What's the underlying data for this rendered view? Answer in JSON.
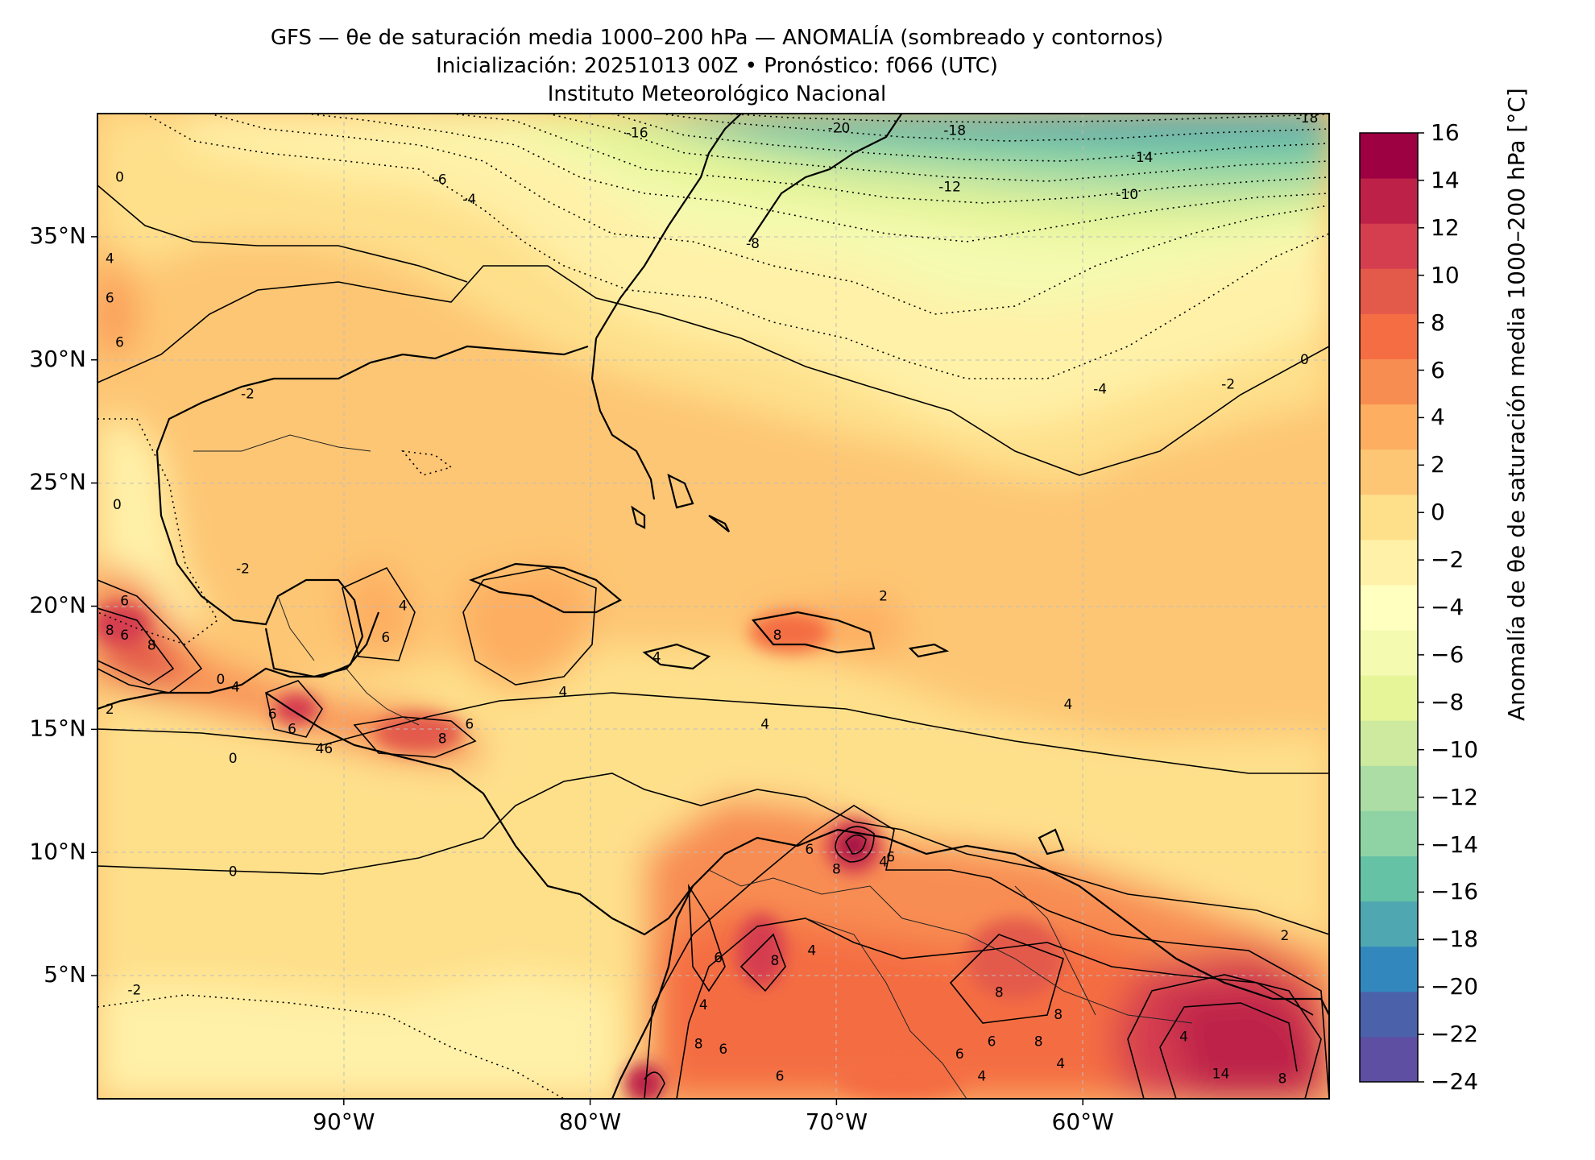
{
  "title": {
    "line1": "GFS — θe de saturación media 1000–200 hPa — ANOMALÍA (sombreado y contornos)",
    "line2": "Inicialización: 20251013 00Z   •   Pronóstico: f066 (UTC)",
    "line3": "Instituto Meteorológico Nacional"
  },
  "map": {
    "lon_range": [
      -100,
      -50
    ],
    "lat_range": [
      0,
      40
    ],
    "lat_ticks": [
      {
        "value": 35,
        "label": "35°N"
      },
      {
        "value": 30,
        "label": "30°N"
      },
      {
        "value": 25,
        "label": "25°N"
      },
      {
        "value": 20,
        "label": "20°N"
      },
      {
        "value": 15,
        "label": "15°N"
      },
      {
        "value": 10,
        "label": "10°N"
      },
      {
        "value": 5,
        "label": "5°N"
      }
    ],
    "lon_ticks": [
      {
        "value": -90,
        "label": "90°W"
      },
      {
        "value": -80,
        "label": "80°W"
      },
      {
        "value": -70,
        "label": "70°W"
      },
      {
        "value": -60,
        "label": "60°W"
      }
    ],
    "contour_labels": [
      {
        "text": "-16",
        "lon": -78.1,
        "lat": 39.2
      },
      {
        "text": "-20",
        "lon": -69.9,
        "lat": 39.4
      },
      {
        "text": "-18",
        "lon": -65.2,
        "lat": 39.3
      },
      {
        "text": "-18",
        "lon": -50.9,
        "lat": 39.8
      },
      {
        "text": "-14",
        "lon": -57.6,
        "lat": 38.2
      },
      {
        "text": "-12",
        "lon": -65.4,
        "lat": 37.0
      },
      {
        "text": "-10",
        "lon": -58.2,
        "lat": 36.7
      },
      {
        "text": "-8",
        "lon": -73.4,
        "lat": 34.7
      },
      {
        "text": "-6",
        "lon": -86.1,
        "lat": 37.3
      },
      {
        "text": "-4",
        "lon": -84.9,
        "lat": 36.5
      },
      {
        "text": "-4",
        "lon": -59.3,
        "lat": 28.8
      },
      {
        "text": "-2",
        "lon": -54.1,
        "lat": 29.0
      },
      {
        "text": "0",
        "lon": -51.0,
        "lat": 30.0
      },
      {
        "text": "0",
        "lon": -99.1,
        "lat": 37.4
      },
      {
        "text": "4",
        "lon": -99.5,
        "lat": 34.1
      },
      {
        "text": "6",
        "lon": -99.5,
        "lat": 32.5
      },
      {
        "text": "6",
        "lon": -99.1,
        "lat": 30.7
      },
      {
        "text": "-2",
        "lon": -93.9,
        "lat": 28.6
      },
      {
        "text": "-2",
        "lon": -94.1,
        "lat": 21.5
      },
      {
        "text": "0",
        "lon": -99.2,
        "lat": 24.1
      },
      {
        "text": "6",
        "lon": -98.9,
        "lat": 20.2
      },
      {
        "text": "8",
        "lon": -99.5,
        "lat": 19.0
      },
      {
        "text": "6",
        "lon": -98.9,
        "lat": 18.8
      },
      {
        "text": "8",
        "lon": -97.8,
        "lat": 18.4
      },
      {
        "text": "0",
        "lon": -95.0,
        "lat": 17.0
      },
      {
        "text": "4",
        "lon": -94.4,
        "lat": 16.7
      },
      {
        "text": "6",
        "lon": -88.3,
        "lat": 18.7
      },
      {
        "text": "4",
        "lon": -87.6,
        "lat": 20.0
      },
      {
        "text": "2",
        "lon": -99.5,
        "lat": 15.8
      },
      {
        "text": "0",
        "lon": -94.5,
        "lat": 13.8
      },
      {
        "text": "6",
        "lon": -92.9,
        "lat": 15.6
      },
      {
        "text": "6",
        "lon": -92.1,
        "lat": 15.0
      },
      {
        "text": "46",
        "lon": -90.8,
        "lat": 14.2
      },
      {
        "text": "8",
        "lon": -86.0,
        "lat": 14.6
      },
      {
        "text": "6",
        "lon": -84.9,
        "lat": 15.2
      },
      {
        "text": "4",
        "lon": -81.1,
        "lat": 16.5
      },
      {
        "text": "4",
        "lon": -77.3,
        "lat": 17.9
      },
      {
        "text": "4",
        "lon": -72.9,
        "lat": 15.2
      },
      {
        "text": "8",
        "lon": -72.4,
        "lat": 18.8
      },
      {
        "text": "2",
        "lon": -68.1,
        "lat": 20.4
      },
      {
        "text": "6",
        "lon": -71.1,
        "lat": 10.1
      },
      {
        "text": "6",
        "lon": -67.8,
        "lat": 9.8
      },
      {
        "text": "8",
        "lon": -70.0,
        "lat": 9.3
      },
      {
        "text": "4",
        "lon": -68.1,
        "lat": 9.6
      },
      {
        "text": "0",
        "lon": -94.5,
        "lat": 9.2
      },
      {
        "text": "-2",
        "lon": -98.5,
        "lat": 4.4
      },
      {
        "text": "6",
        "lon": -74.8,
        "lat": 5.7
      },
      {
        "text": "8",
        "lon": -72.5,
        "lat": 5.6
      },
      {
        "text": "4",
        "lon": -71.0,
        "lat": 6.0
      },
      {
        "text": "4",
        "lon": -75.4,
        "lat": 3.8
      },
      {
        "text": "8",
        "lon": -75.6,
        "lat": 2.2
      },
      {
        "text": "6",
        "lon": -74.6,
        "lat": 2.0
      },
      {
        "text": "6",
        "lon": -72.3,
        "lat": 0.9
      },
      {
        "text": "8",
        "lon": -63.4,
        "lat": 4.3
      },
      {
        "text": "6",
        "lon": -63.7,
        "lat": 2.3
      },
      {
        "text": "8",
        "lon": -61.8,
        "lat": 2.3
      },
      {
        "text": "8",
        "lon": -61.0,
        "lat": 3.4
      },
      {
        "text": "4",
        "lon": -60.9,
        "lat": 1.4
      },
      {
        "text": "4",
        "lon": -64.1,
        "lat": 0.9
      },
      {
        "text": "6",
        "lon": -65.0,
        "lat": 1.8
      },
      {
        "text": "14",
        "lon": -54.4,
        "lat": 1.0
      },
      {
        "text": "4",
        "lon": -55.9,
        "lat": 2.5
      },
      {
        "text": "8",
        "lon": -51.9,
        "lat": 0.8
      },
      {
        "text": "2",
        "lon": -51.8,
        "lat": 6.6
      },
      {
        "text": "4",
        "lon": -60.6,
        "lat": 16.0
      }
    ]
  },
  "colorbar": {
    "label": "Anomalía de θe de saturación media 1000–200 hPa [°C]",
    "levels": [
      -24,
      -22,
      -20,
      -18,
      -16,
      -14,
      -12,
      -10,
      -8,
      -6,
      -4,
      -2,
      0,
      2,
      4,
      6,
      8,
      10,
      12,
      14,
      16
    ],
    "tick_labels": [
      "16",
      "14",
      "12",
      "10",
      "8",
      "6",
      "4",
      "2",
      "0",
      "−2",
      "−4",
      "−6",
      "−8",
      "−10",
      "−12",
      "−14",
      "−16",
      "−18",
      "−20",
      "−22",
      "−24"
    ],
    "colors": [
      "#5e4fa2",
      "#4b62ab",
      "#3288bd",
      "#4fa7b1",
      "#66c2a5",
      "#8fd3a4",
      "#abdda4",
      "#cdea9f",
      "#e6f598",
      "#f4fab0",
      "#ffffbf",
      "#fff1a8",
      "#fee08b",
      "#fdc674",
      "#fdae61",
      "#f88d52",
      "#f46d43",
      "#e35a4b",
      "#d53e4f",
      "#be2148",
      "#9e0142"
    ]
  }
}
